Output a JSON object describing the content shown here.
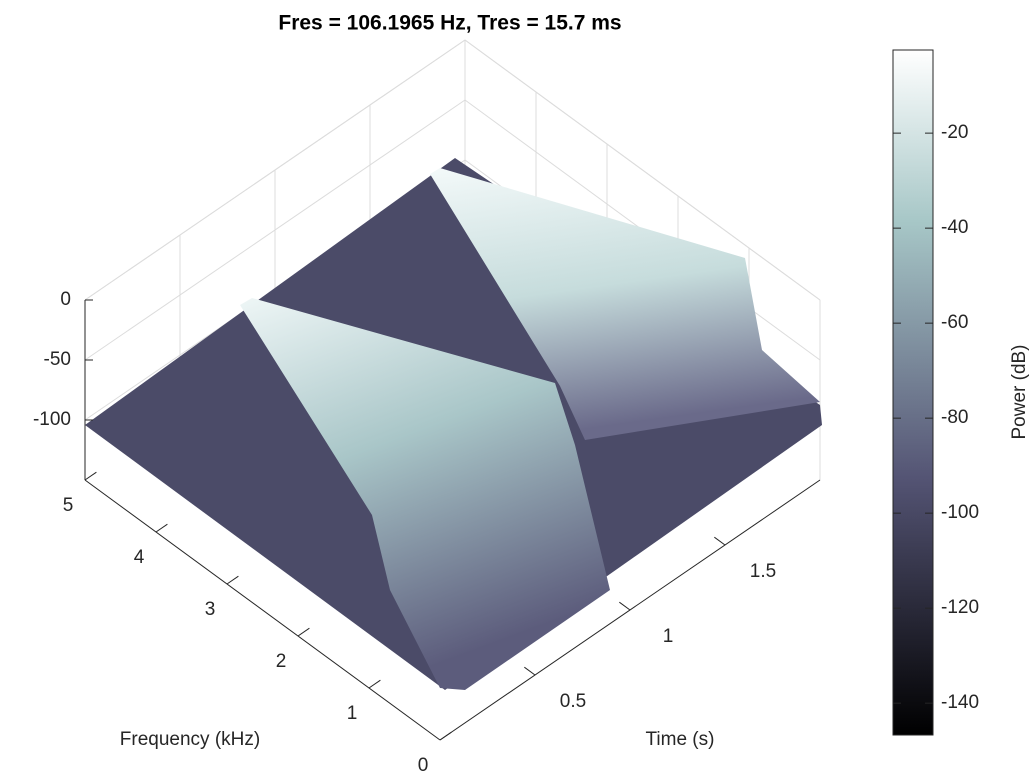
{
  "chart_data": {
    "type": "surface",
    "title": "Fres = 106.1965 Hz, Tres = 15.7 ms",
    "xlabel": "Time (s)",
    "ylabel": "Frequency (kHz)",
    "xlim": [
      0,
      2
    ],
    "xticks": [
      0.5,
      1,
      1.5
    ],
    "ylim": [
      0,
      5
    ],
    "yticks": [
      0,
      1,
      2,
      3,
      4,
      5
    ],
    "zlim": [
      -150,
      0
    ],
    "zticks": [
      -100,
      -50,
      0
    ],
    "colormap": "bone",
    "colorbar": {
      "label": "Power (dB)",
      "lim": [
        -146.7,
        -2.5
      ],
      "ticks": [
        -140,
        -120,
        -100,
        -80,
        -60,
        -40,
        -20
      ]
    }
  }
}
